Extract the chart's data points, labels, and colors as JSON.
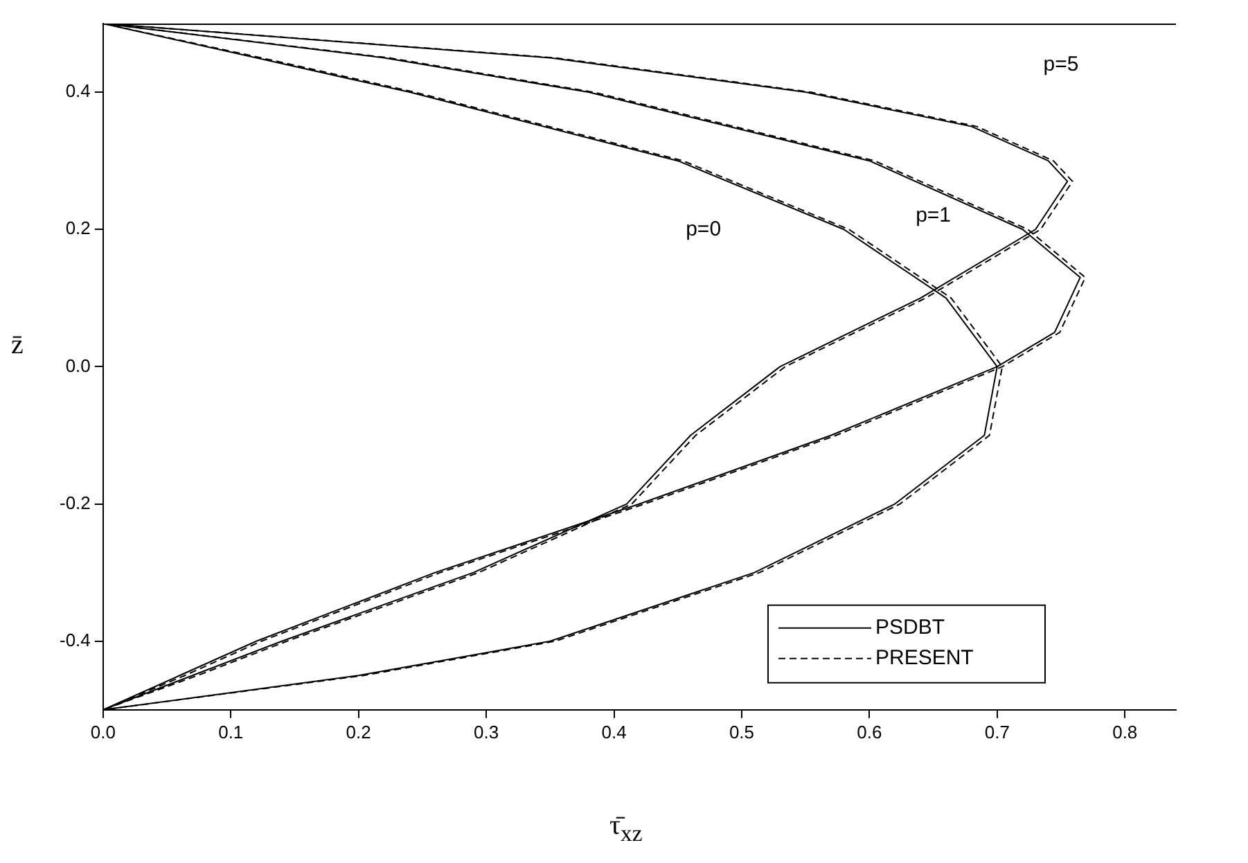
{
  "chart_data": {
    "type": "line",
    "xlabel": "τ̄$_{xz}$",
    "ylabel": "z̄",
    "xlim": [
      0,
      0.84
    ],
    "ylim": [
      -0.5,
      0.5
    ],
    "xticks": [
      {
        "value": 0,
        "label": "0.0"
      },
      0.1,
      0.2,
      0.3,
      0.4,
      0.5,
      0.6,
      0.7,
      0.8
    ],
    "yticks": [
      -0.4,
      -0.2,
      {
        "value": 0,
        "label": "0.0"
      },
      0.2,
      0.4
    ],
    "grid": false,
    "legend": "bottom right",
    "marker": "none",
    "series": [
      {
        "name": "PSDBT",
        "color": "#000000",
        "line_style": "solid",
        "x": [
          0,
          0.12,
          0.24,
          0.45,
          0.58,
          0.66,
          0.7,
          0.69,
          0.62,
          0.51,
          0.35,
          0.2,
          0
        ],
        "values": [
          0.5,
          0.45,
          0.4,
          0.3,
          0.2,
          0.1,
          0,
          -0.1,
          -0.2,
          -0.3,
          -0.4,
          -0.45,
          -0.5
        ]
      },
      {
        "name": "PRESENT",
        "color": "#000000",
        "line_style": "dashed",
        "x": [
          0,
          0.124,
          0.244,
          0.454,
          0.584,
          0.664,
          0.704,
          0.694,
          0.624,
          0.514,
          0.354,
          0.204,
          0
        ],
        "values": [
          0.5,
          0.45,
          0.4,
          0.3,
          0.2,
          0.1,
          0,
          -0.1,
          -0.2,
          -0.3,
          -0.4,
          -0.45,
          -0.5
        ]
      },
      {
        "color": "#000000",
        "line_style": "solid",
        "x": [
          0,
          0.22,
          0.38,
          0.6,
          0.72,
          0.765,
          0.745,
          0.7,
          0.57,
          0.42,
          0.26,
          0.12,
          0.06,
          0
        ],
        "values": [
          0.5,
          0.45,
          0.4,
          0.3,
          0.2,
          0.13,
          0.05,
          0,
          -0.1,
          -0.2,
          -0.3,
          -0.4,
          -0.45,
          -0.5
        ]
      },
      {
        "color": "#000000",
        "line_style": "dashed",
        "x": [
          0,
          0.224,
          0.384,
          0.604,
          0.724,
          0.769,
          0.749,
          0.704,
          0.574,
          0.424,
          0.264,
          0.124,
          0.064,
          0
        ],
        "values": [
          0.5,
          0.45,
          0.4,
          0.3,
          0.2,
          0.13,
          0.05,
          0,
          -0.1,
          -0.2,
          -0.3,
          -0.4,
          -0.45,
          -0.5
        ]
      },
      {
        "color": "#000000",
        "line_style": "solid",
        "x": [
          0,
          0.35,
          0.55,
          0.68,
          0.74,
          0.755,
          0.73,
          0.64,
          0.53,
          0.46,
          0.41,
          0.29,
          0.14,
          0.07,
          0
        ],
        "values": [
          0.5,
          0.45,
          0.4,
          0.35,
          0.3,
          0.27,
          0.2,
          0.1,
          0,
          -0.1,
          -0.2,
          -0.3,
          -0.4,
          -0.45,
          -0.5
        ]
      },
      {
        "color": "#000000",
        "line_style": "dashed",
        "x": [
          0,
          0.354,
          0.554,
          0.684,
          0.744,
          0.759,
          0.734,
          0.644,
          0.534,
          0.464,
          0.414,
          0.294,
          0.144,
          0.074,
          0
        ],
        "values": [
          0.5,
          0.45,
          0.4,
          0.35,
          0.3,
          0.27,
          0.2,
          0.1,
          0,
          -0.1,
          -0.2,
          -0.3,
          -0.4,
          -0.45,
          -0.5
        ]
      }
    ],
    "annotations": [
      "p=0",
      "p=1",
      "p=5"
    ]
  }
}
